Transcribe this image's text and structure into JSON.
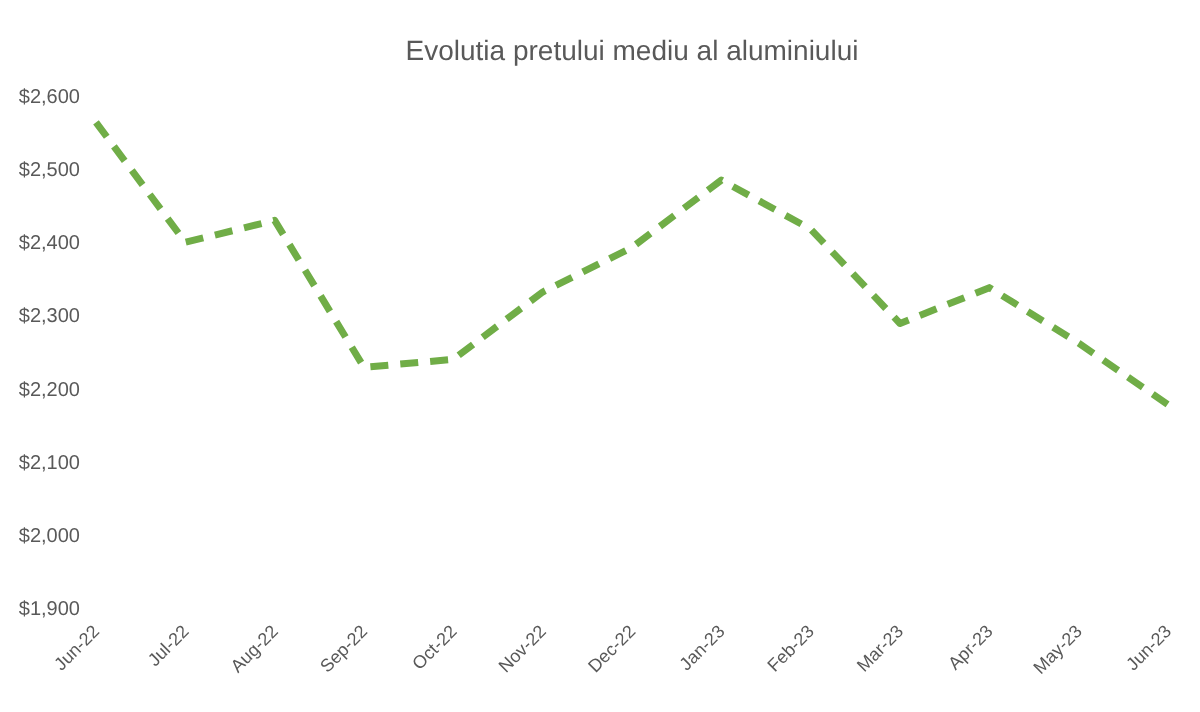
{
  "chart_data": {
    "type": "line",
    "title": "Evolutia pretului mediu al aluminiului",
    "categories": [
      "Jun-22",
      "Jul-22",
      "Aug-22",
      "Sep-22",
      "Oct-22",
      "Nov-22",
      "Dec-22",
      "Jan-23",
      "Feb-23",
      "Mar-23",
      "Apr-23",
      "May-23",
      "Jun-23"
    ],
    "series": [
      {
        "color": "#70ad47",
        "values": [
          2564,
          2400,
          2430,
          2229,
          2240,
          2332,
          2393,
          2485,
          2418,
          2289,
          2338,
          2262,
          2178
        ]
      }
    ],
    "ylim": [
      1900,
      2600
    ],
    "yticks": [
      {
        "value": 1900,
        "label": "$1,900"
      },
      {
        "value": 2000,
        "label": "$2,000"
      },
      {
        "value": 2100,
        "label": "$2,100"
      },
      {
        "value": 2200,
        "label": "$2,200"
      },
      {
        "value": 2300,
        "label": "$2,300"
      },
      {
        "value": 2400,
        "label": "$2,400"
      },
      {
        "value": 2500,
        "label": "$2,500"
      },
      {
        "value": 2600,
        "label": "$2,600"
      }
    ],
    "grid": false,
    "marker": "none",
    "line_style": "dashed"
  }
}
